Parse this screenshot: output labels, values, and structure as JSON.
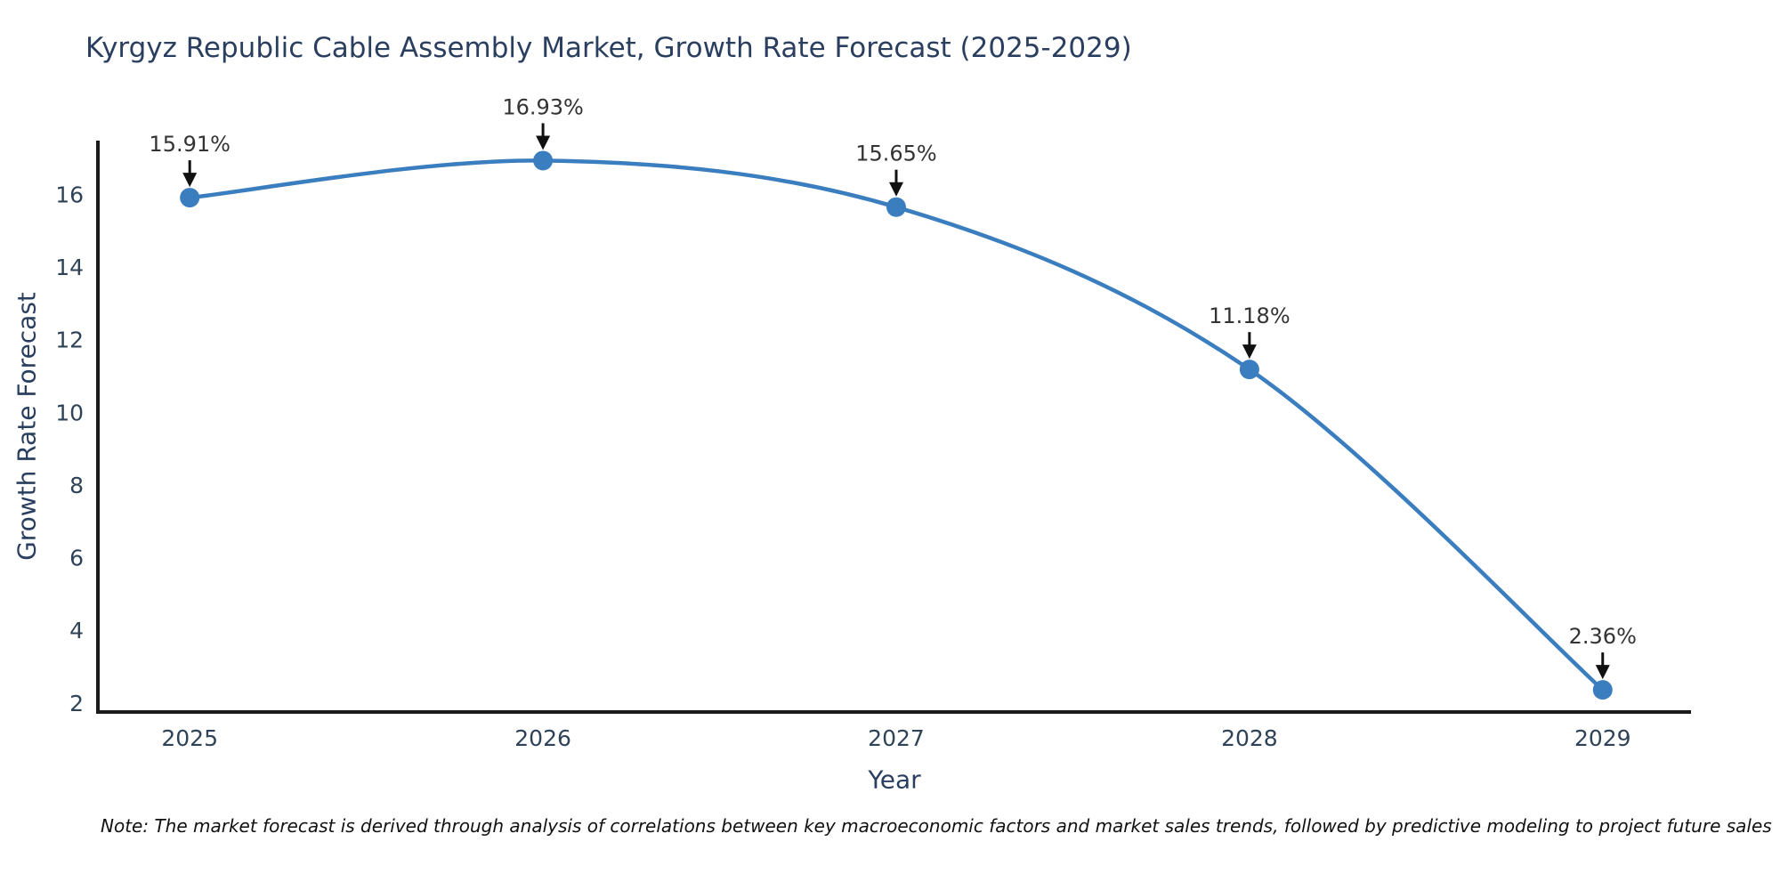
{
  "title": "Kyrgyz Republic Cable Assembly Market, Growth Rate Forecast (2025-2029)",
  "note": "Note: The market forecast is derived through analysis of correlations between key macroeconomic factors and market sales trends, followed by predictive modeling to project future sales",
  "chart_data": {
    "type": "line",
    "title": "Kyrgyz Republic Cable Assembly Market, Growth Rate Forecast (2025-2029)",
    "xlabel": "Year",
    "ylabel": "Growth Rate Forecast",
    "x": [
      2025,
      2026,
      2027,
      2028,
      2029
    ],
    "values": [
      15.91,
      16.93,
      15.65,
      11.18,
      2.36
    ],
    "point_labels": [
      "15.91%",
      "16.93%",
      "15.65%",
      "11.18%",
      "2.36%"
    ],
    "x_ticks": [
      2025,
      2026,
      2027,
      2028,
      2029
    ],
    "y_ticks": [
      2,
      4,
      6,
      8,
      10,
      12,
      14,
      16
    ],
    "x_range": [
      2024.74,
      2029.25
    ],
    "y_range": [
      1.75,
      17.48
    ],
    "grid": false,
    "legend": "none",
    "smooth": true,
    "line_color": "#3a7ebf",
    "marker_color": "#3a7ebf",
    "annotation_color": "#333333",
    "arrow_color": "#111111",
    "axis_color": "#1a1a1a",
    "tick_color": "#2f4358",
    "label_color": "#2a3f5f"
  }
}
